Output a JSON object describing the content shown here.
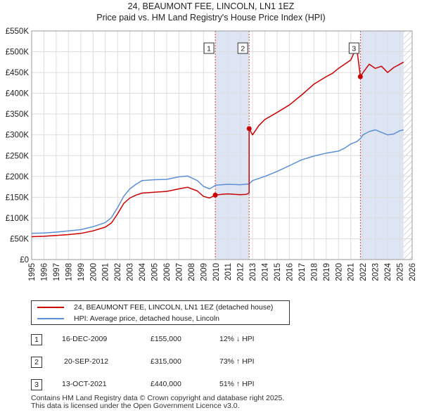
{
  "header": {
    "title_line1": "24, BEAUMONT FEE, LINCOLN, LN1 1EZ",
    "title_line2": "Price paid vs. HM Land Registry's House Price Index (HPI)"
  },
  "colors": {
    "property": "#cc0000",
    "hpi": "#5b8fd6",
    "shade": "#dde5f5"
  },
  "chart_data": {
    "type": "line",
    "title": "Price paid vs. HM Land Registry's House Price Index (HPI)",
    "xlim": [
      1995,
      2026
    ],
    "ylim": [
      0,
      550000
    ],
    "x_ticks": [
      "1995",
      "1996",
      "1997",
      "1998",
      "1999",
      "2000",
      "2001",
      "2002",
      "2003",
      "2004",
      "2005",
      "2006",
      "2007",
      "2008",
      "2009",
      "2010",
      "2011",
      "2012",
      "2013",
      "2014",
      "2015",
      "2016",
      "2017",
      "2018",
      "2019",
      "2020",
      "2021",
      "2022",
      "2023",
      "2024",
      "2025",
      "2026"
    ],
    "y_ticks": [
      {
        "value": 0,
        "label": "£0"
      },
      {
        "value": 50000,
        "label": "£50K"
      },
      {
        "value": 100000,
        "label": "£100K"
      },
      {
        "value": 150000,
        "label": "£150K"
      },
      {
        "value": 200000,
        "label": "£200K"
      },
      {
        "value": 250000,
        "label": "£250K"
      },
      {
        "value": 300000,
        "label": "£300K"
      },
      {
        "value": 350000,
        "label": "£350K"
      },
      {
        "value": 400000,
        "label": "£400K"
      },
      {
        "value": 450000,
        "label": "£450K"
      },
      {
        "value": 500000,
        "label": "£500K"
      },
      {
        "value": 550000,
        "label": "£550K"
      }
    ],
    "shaded_regions": [
      [
        2009.96,
        2012.72
      ],
      [
        2021.78,
        2025.3
      ]
    ],
    "hatched_after": 2025.3,
    "events": [
      {
        "label": "1",
        "x": 2009.96,
        "price": 155000
      },
      {
        "label": "2",
        "x": 2012.72,
        "price": 315000
      },
      {
        "label": "3",
        "x": 2021.78,
        "price": 440000
      }
    ],
    "series": [
      {
        "name": "24, BEAUMONT FEE, LINCOLN, LN1 1EZ (detached house)",
        "x": [
          1995,
          1996,
          1997,
          1998,
          1999,
          2000,
          2001,
          2001.5,
          2002,
          2002.5,
          2003,
          2003.5,
          2004,
          2005,
          2006,
          2007,
          2007.7,
          2008.5,
          2009,
          2009.5,
          2009.96,
          2010.5,
          2011,
          2011.5,
          2012,
          2012.5,
          2012.72,
          2012.72,
          2013,
          2013.5,
          2014,
          2015,
          2016,
          2017,
          2018,
          2019,
          2019.5,
          2020,
          2020.5,
          2021,
          2021.3,
          2021.5,
          2021.78,
          2022,
          2022.5,
          2023,
          2023.5,
          2024,
          2024.5,
          2025,
          2025.3
        ],
        "values": [
          55000,
          56000,
          58000,
          60000,
          63000,
          69000,
          78000,
          88000,
          110000,
          135000,
          148000,
          155000,
          160000,
          162000,
          164000,
          170000,
          174000,
          165000,
          152000,
          148000,
          155000,
          157000,
          158000,
          157000,
          156000,
          157000,
          160000,
          315000,
          300000,
          322000,
          337000,
          354000,
          372000,
          396000,
          422000,
          440000,
          448000,
          460000,
          470000,
          480000,
          500000,
          505000,
          440000,
          450000,
          470000,
          460000,
          465000,
          450000,
          462000,
          470000,
          475000
        ]
      },
      {
        "name": "HPI: Average price, detached house, Lincoln",
        "x": [
          1995,
          1996,
          1997,
          1998,
          1999,
          2000,
          2001,
          2001.5,
          2002,
          2002.5,
          2003,
          2003.5,
          2004,
          2005,
          2006,
          2007,
          2007.7,
          2008.5,
          2009,
          2009.5,
          2010,
          2011,
          2012,
          2012.72,
          2013,
          2014,
          2015,
          2016,
          2017,
          2018,
          2019,
          2020,
          2020.5,
          2021,
          2021.5,
          2021.78,
          2022,
          2022.5,
          2023,
          2023.5,
          2024,
          2024.5,
          2025,
          2025.3
        ],
        "values": [
          63000,
          64000,
          66000,
          69000,
          72000,
          79000,
          89000,
          101000,
          125000,
          152000,
          170000,
          181000,
          190000,
          192000,
          193000,
          199000,
          201000,
          190000,
          176000,
          170000,
          179000,
          181000,
          180000,
          182000,
          190000,
          200000,
          212000,
          226000,
          240000,
          249000,
          256000,
          261000,
          268000,
          278000,
          284000,
          291000,
          300000,
          308000,
          312000,
          306000,
          300000,
          302000,
          310000,
          312000
        ]
      }
    ]
  },
  "legend": {
    "property_label": "24, BEAUMONT FEE, LINCOLN, LN1 1EZ (detached house)",
    "hpi_label": "HPI: Average price, detached house, Lincoln"
  },
  "transactions": [
    {
      "num": "1",
      "date": "16-DEC-2009",
      "price": "£155,000",
      "hpi": "12% ↓ HPI"
    },
    {
      "num": "2",
      "date": "20-SEP-2012",
      "price": "£315,000",
      "hpi": "73% ↑ HPI"
    },
    {
      "num": "3",
      "date": "13-OCT-2021",
      "price": "£440,000",
      "hpi": "51% ↑ HPI"
    }
  ],
  "footer": {
    "line1": "Contains HM Land Registry data © Crown copyright and database right 2025.",
    "line2": "This data is licensed under the Open Government Licence v3.0."
  }
}
